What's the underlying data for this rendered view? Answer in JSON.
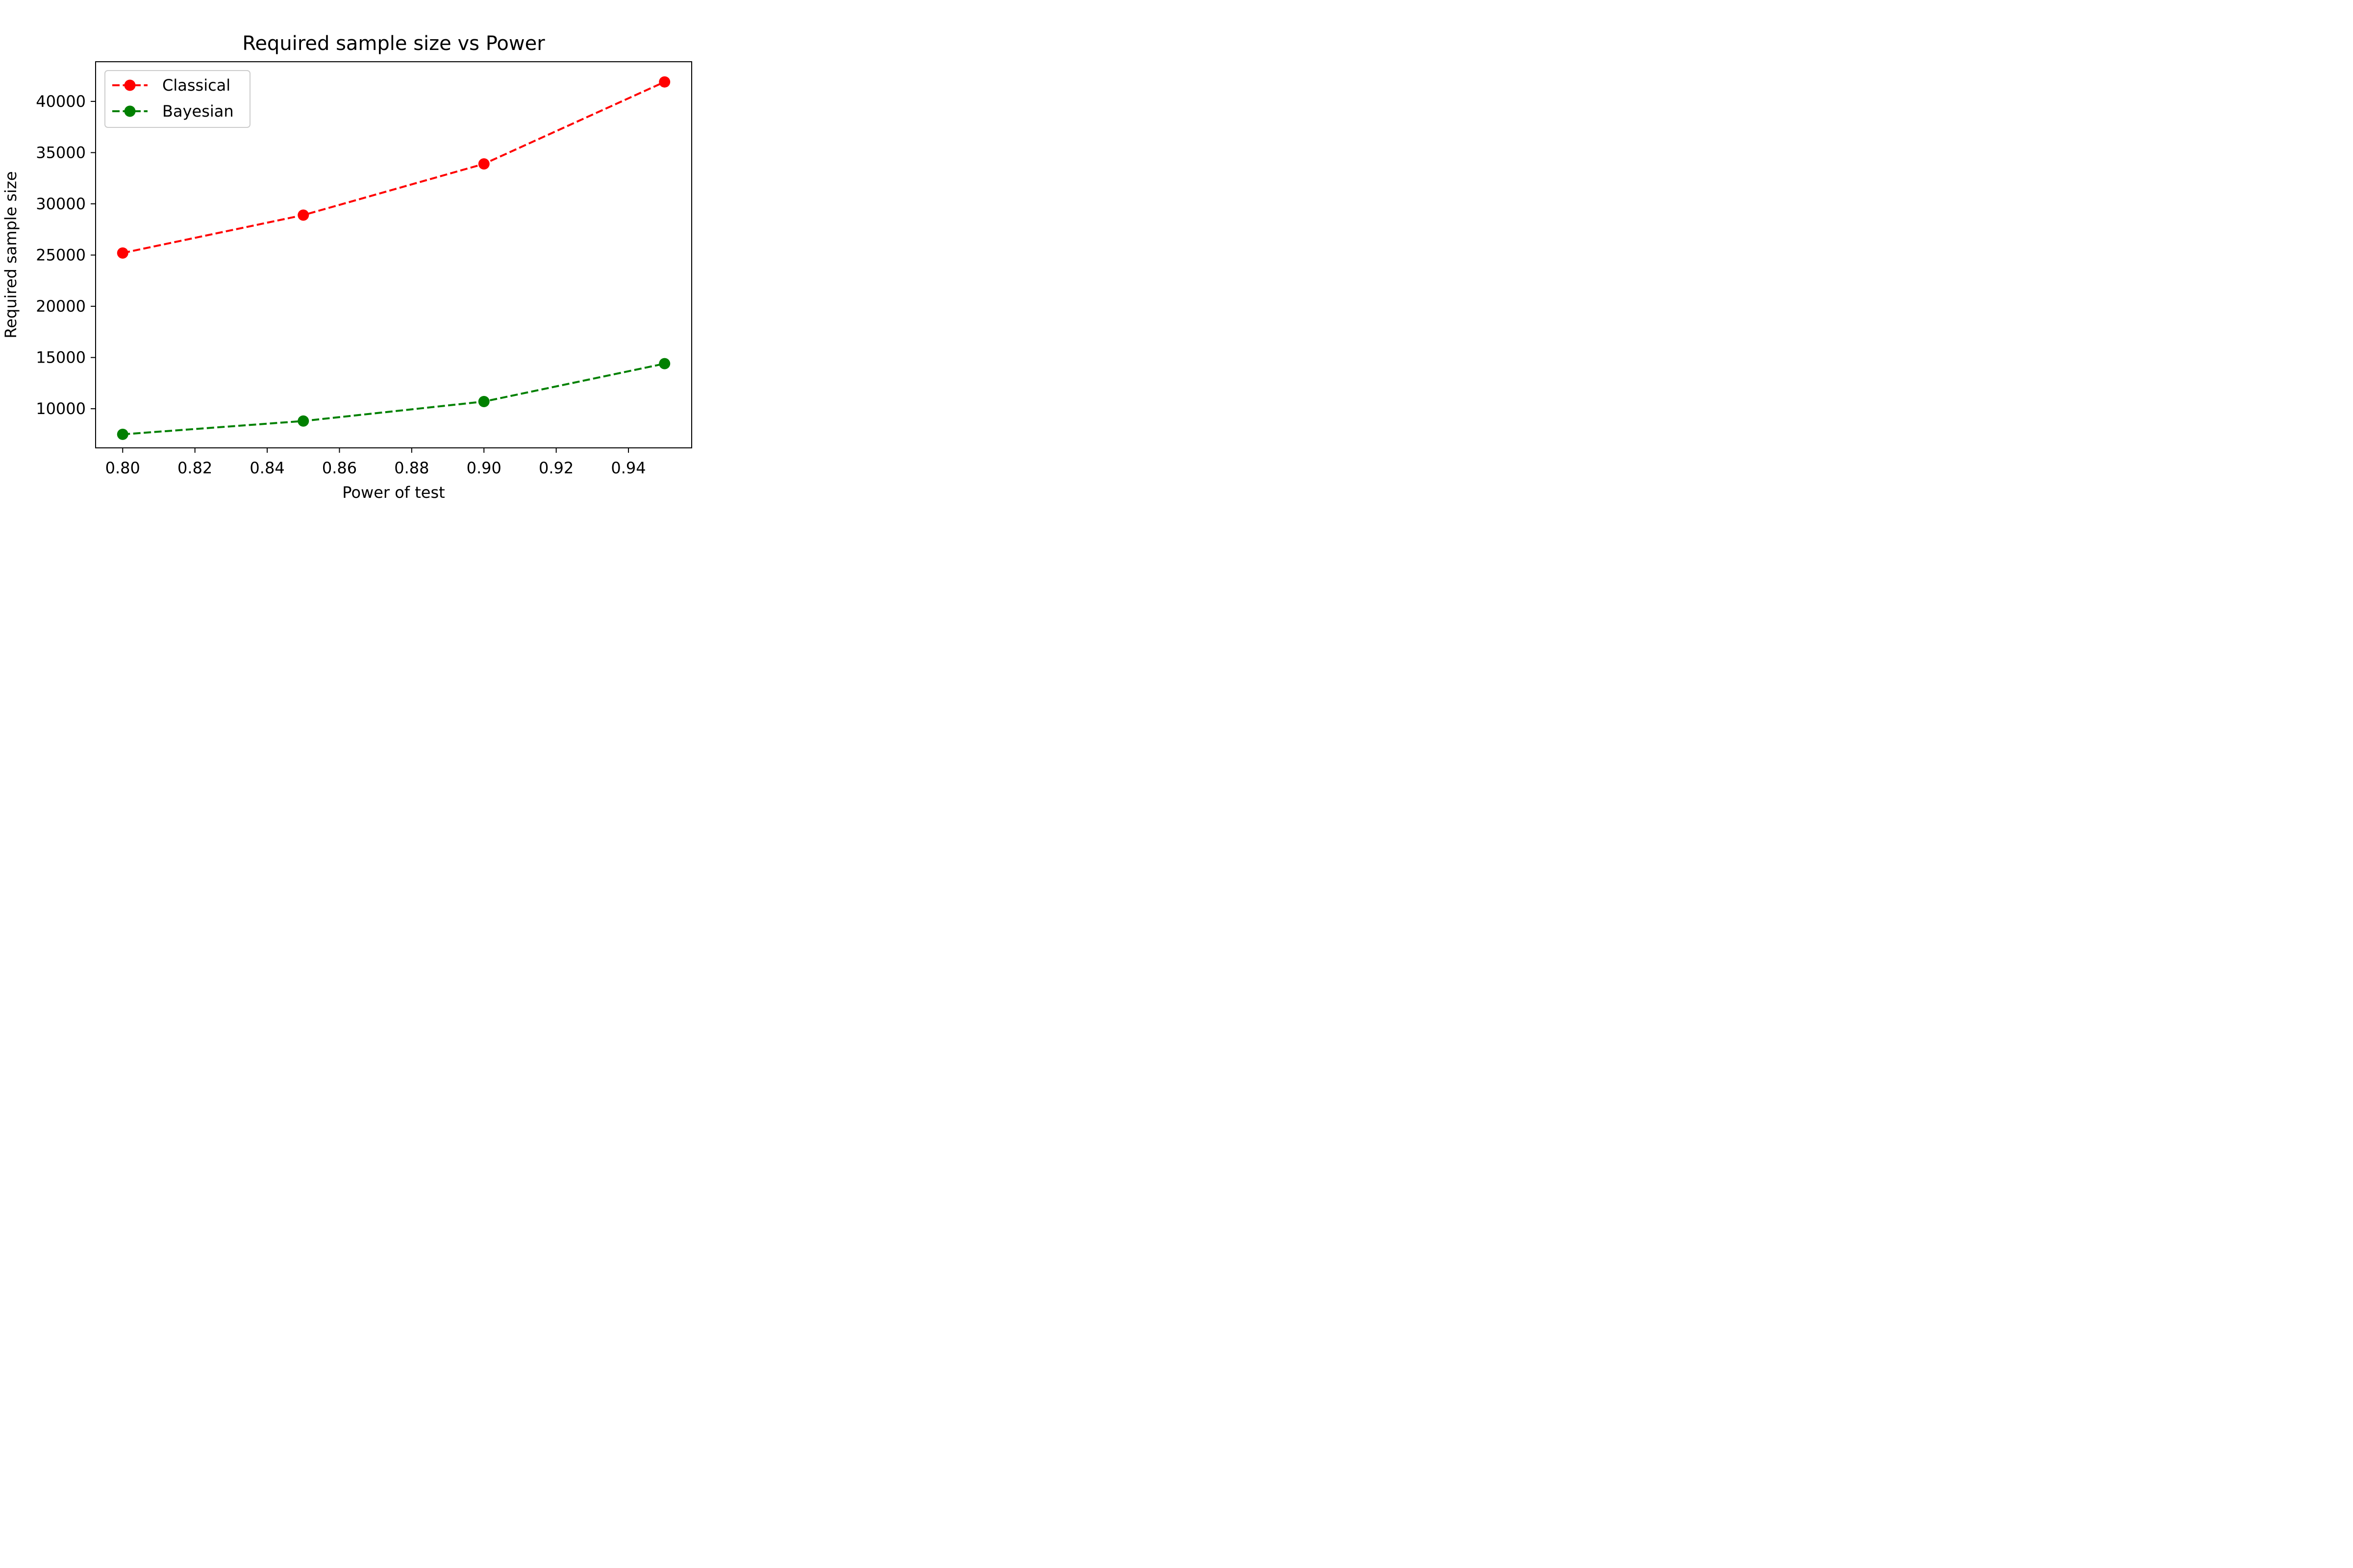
{
  "chart_data": {
    "type": "line",
    "title": "Required sample size vs Power",
    "xlabel": "Power of test",
    "ylabel": "Required sample size",
    "x": [
      0.8,
      0.85,
      0.9,
      0.95
    ],
    "series": [
      {
        "name": "Classical",
        "color": "#ff0000",
        "marker": "circle",
        "linestyle": "dashed",
        "values": [
          25200,
          28900,
          33900,
          41900
        ]
      },
      {
        "name": "Bayesian",
        "color": "#008000",
        "marker": "circle",
        "linestyle": "dashed",
        "values": [
          7500,
          8800,
          10700,
          14400
        ]
      }
    ],
    "xlim": [
      0.7925,
      0.9575
    ],
    "ylim": [
      6180,
      43870
    ],
    "xticks": [
      0.8,
      0.82,
      0.84,
      0.86,
      0.88,
      0.9,
      0.92,
      0.94
    ],
    "xtick_labels": [
      "0.80",
      "0.82",
      "0.84",
      "0.86",
      "0.88",
      "0.90",
      "0.92",
      "0.94"
    ],
    "yticks": [
      10000,
      15000,
      20000,
      25000,
      30000,
      35000,
      40000
    ],
    "ytick_labels": [
      "10000",
      "15000",
      "20000",
      "25000",
      "30000",
      "35000",
      "40000"
    ],
    "grid": false,
    "legend_position": "top-left"
  }
}
